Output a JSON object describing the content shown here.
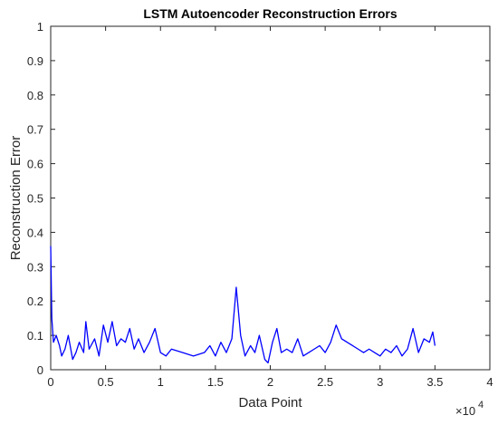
{
  "colors": {
    "series": "#0000ff",
    "axis": "#262626",
    "background": "#ffffff"
  },
  "chart_data": {
    "type": "line",
    "title": "LSTM Autoencoder Reconstruction Errors",
    "xlabel": "Data Point",
    "ylabel": "Reconstruction Error",
    "x_exponent_label": "×10",
    "x_exponent_power": "4",
    "xlim": [
      0,
      40000
    ],
    "ylim": [
      0,
      1
    ],
    "grid": false,
    "legend": "none",
    "x_ticks": [
      0,
      5000,
      10000,
      15000,
      20000,
      25000,
      30000,
      35000,
      40000
    ],
    "x_tick_labels": [
      "0",
      "0.5",
      "1",
      "1.5",
      "2",
      "2.5",
      "3",
      "3.5",
      "4"
    ],
    "y_ticks": [
      0,
      0.1,
      0.2,
      0.3,
      0.4,
      0.5,
      0.6,
      0.7,
      0.8,
      0.9,
      1
    ],
    "y_tick_labels": [
      "0",
      "0.1",
      "0.2",
      "0.3",
      "0.4",
      "0.5",
      "0.6",
      "0.7",
      "0.8",
      "0.9",
      "1"
    ],
    "series": [
      {
        "x": [
          0,
          100,
          250,
          500,
          800,
          1000,
          1300,
          1600,
          2000,
          2300,
          2600,
          3000,
          3200,
          3500,
          4000,
          4400,
          4800,
          5200,
          5600,
          6000,
          6400,
          6800,
          7200,
          7600,
          8000,
          8500,
          9000,
          9500,
          10000,
          10500,
          11000,
          12000,
          13000,
          14000,
          14500,
          15000,
          15500,
          16000,
          16500,
          16900,
          17300,
          17700,
          18200,
          18600,
          19000,
          19500,
          19800,
          20200,
          20600,
          21000,
          21500,
          22000,
          22500,
          23000,
          23500,
          24000,
          24500,
          25000,
          25500,
          26000,
          26500,
          27000,
          27500,
          28000,
          28500,
          29000,
          29500,
          30000,
          30500,
          31000,
          31500,
          32000,
          32500,
          33000,
          33500,
          34000,
          34500,
          34800,
          35000
        ],
        "values": [
          0.36,
          0.15,
          0.08,
          0.1,
          0.07,
          0.04,
          0.06,
          0.1,
          0.03,
          0.05,
          0.08,
          0.05,
          0.14,
          0.06,
          0.09,
          0.04,
          0.13,
          0.08,
          0.14,
          0.07,
          0.09,
          0.08,
          0.12,
          0.06,
          0.09,
          0.05,
          0.08,
          0.12,
          0.05,
          0.04,
          0.06,
          0.05,
          0.04,
          0.05,
          0.07,
          0.04,
          0.08,
          0.05,
          0.09,
          0.24,
          0.1,
          0.04,
          0.07,
          0.05,
          0.1,
          0.03,
          0.02,
          0.08,
          0.12,
          0.05,
          0.06,
          0.05,
          0.09,
          0.04,
          0.05,
          0.06,
          0.07,
          0.05,
          0.08,
          0.13,
          0.09,
          0.08,
          0.07,
          0.06,
          0.05,
          0.06,
          0.05,
          0.04,
          0.06,
          0.05,
          0.07,
          0.04,
          0.06,
          0.12,
          0.05,
          0.09,
          0.08,
          0.11,
          0.07
        ]
      }
    ]
  }
}
